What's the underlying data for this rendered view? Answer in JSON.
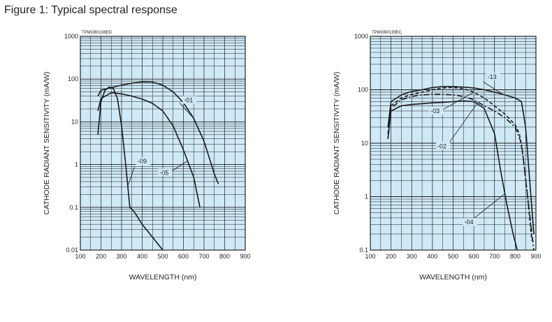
{
  "page": {
    "title": "Figure 1: Typical spectral response"
  },
  "chart_data": [
    {
      "type": "line",
      "code": "TPMOB0138ED",
      "xlabel": "WAVELENGTH (nm)",
      "ylabel": "CATHODE RADIANT SENSITIVITY (mA/W)",
      "xlim": [
        100,
        900
      ],
      "ylim": [
        0.01,
        1000
      ],
      "yscale": "log",
      "grid": true,
      "x_ticks": [
        "100",
        "200",
        "300",
        "400",
        "500",
        "600",
        "700",
        "800",
        "900"
      ],
      "y_ticks": [
        "0.01",
        "0.1",
        "1",
        "10",
        "100",
        "1000"
      ],
      "series": [
        {
          "name": "-01",
          "x": [
            185,
            200,
            250,
            300,
            350,
            400,
            450,
            500,
            550,
            600,
            650,
            700,
            750,
            770
          ],
          "y": [
            40,
            55,
            63,
            72,
            80,
            86,
            85,
            72,
            50,
            28,
            12,
            3.5,
            0.6,
            0.35
          ]
        },
        {
          "name": "-05",
          "x": [
            185,
            200,
            250,
            300,
            350,
            400,
            450,
            500,
            550,
            600,
            650,
            680
          ],
          "y": [
            18,
            35,
            48,
            45,
            40,
            34,
            27,
            18,
            8,
            2.2,
            0.5,
            0.1
          ]
        },
        {
          "name": "-09",
          "x": [
            185,
            200,
            220,
            240,
            260,
            280,
            300,
            320,
            340,
            360,
            400,
            450,
            500
          ],
          "y": [
            5,
            30,
            55,
            65,
            60,
            35,
            8,
            1,
            0.1,
            0.08,
            0.04,
            0.02,
            0.01
          ]
        }
      ]
    },
    {
      "type": "line",
      "code": "TPMOB0139EC",
      "xlabel": "WAVELENGTH (nm)",
      "ylabel": "CATHODE RADIANT SENSITIVITY (mA/W)",
      "xlim": [
        100,
        900
      ],
      "ylim": [
        0.1,
        1000
      ],
      "yscale": "log",
      "grid": true,
      "x_ticks": [
        "100",
        "200",
        "300",
        "400",
        "500",
        "600",
        "700",
        "800",
        "900"
      ],
      "y_ticks": [
        "0.1",
        "1",
        "10",
        "100",
        "1000"
      ],
      "series": [
        {
          "name": "-13",
          "x": [
            185,
            200,
            250,
            300,
            350,
            400,
            450,
            500,
            550,
            600,
            650,
            700,
            750,
            800,
            830,
            850,
            870,
            890
          ],
          "y": [
            20,
            60,
            80,
            93,
            100,
            110,
            115,
            115,
            112,
            108,
            100,
            90,
            80,
            70,
            60,
            20,
            2,
            0.2
          ]
        },
        {
          "name": "-03",
          "x": [
            185,
            200,
            250,
            300,
            350,
            400,
            450,
            500,
            550,
            600,
            650,
            700,
            750,
            800,
            820,
            840,
            860,
            880
          ],
          "y": [
            15,
            50,
            70,
            82,
            90,
            100,
            108,
            110,
            105,
            90,
            70,
            50,
            35,
            22,
            15,
            5,
            1,
            0.15
          ]
        },
        {
          "name": "-02",
          "x": [
            185,
            200,
            250,
            300,
            350,
            400,
            450,
            500,
            550,
            600,
            650,
            700,
            750,
            800,
            830,
            860,
            890
          ],
          "y": [
            12,
            45,
            65,
            75,
            80,
            82,
            82,
            80,
            75,
            65,
            50,
            40,
            30,
            20,
            10,
            1,
            0.1
          ]
        },
        {
          "name": "-04",
          "x": [
            185,
            200,
            250,
            300,
            350,
            400,
            450,
            500,
            550,
            600,
            650,
            700,
            730,
            760,
            790,
            810
          ],
          "y": [
            12,
            40,
            50,
            53,
            55,
            57,
            58,
            60,
            62,
            60,
            45,
            15,
            3,
            0.7,
            0.2,
            0.1
          ]
        }
      ]
    }
  ]
}
